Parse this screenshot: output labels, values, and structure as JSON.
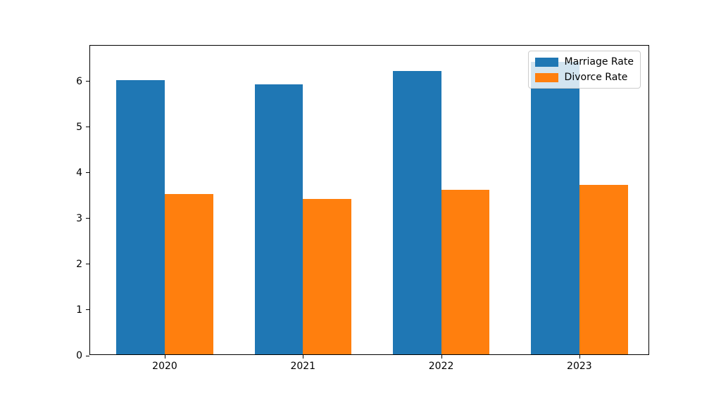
{
  "figure": {
    "background": "#ffffff"
  },
  "chart_data": {
    "type": "bar",
    "title": "",
    "xlabel": "",
    "ylabel": "",
    "categories": [
      "2020",
      "2021",
      "2022",
      "2023"
    ],
    "series": [
      {
        "name": "Marriage Rate",
        "color": "#1f77b4",
        "values": [
          6.0,
          5.9,
          6.2,
          6.4
        ]
      },
      {
        "name": "Divorce Rate",
        "color": "#ff7f0e",
        "values": [
          3.5,
          3.4,
          3.6,
          3.7
        ]
      }
    ],
    "bar_width": 0.35,
    "xlim": [
      -0.54,
      3.51
    ],
    "ylim": [
      0,
      6.78
    ],
    "yticks": [
      "0",
      "1",
      "2",
      "3",
      "4",
      "5",
      "6"
    ],
    "grid": false,
    "legend": {
      "position": "upper-right",
      "entries": [
        "Marriage Rate",
        "Divorce Rate"
      ]
    }
  }
}
